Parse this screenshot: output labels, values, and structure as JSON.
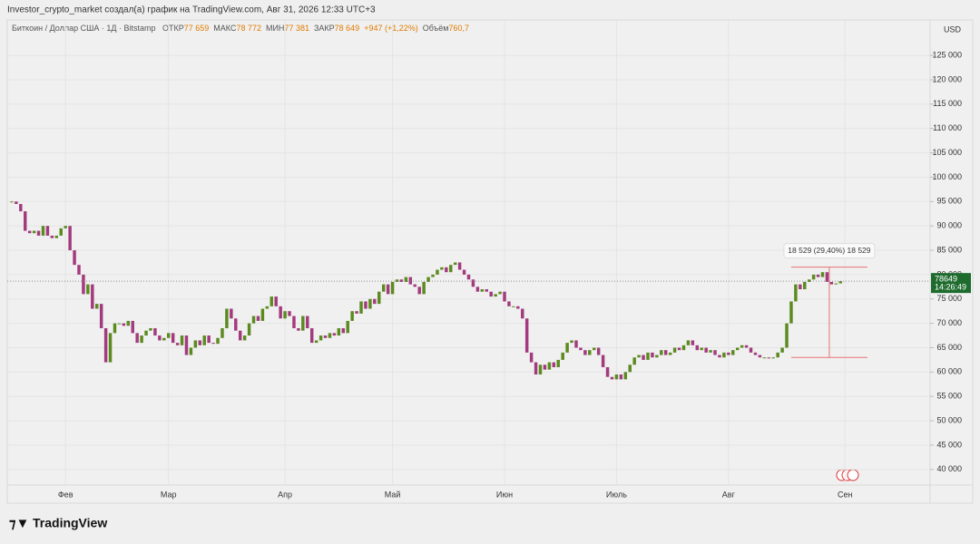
{
  "chart_data": {
    "type": "candlestick",
    "header": "Investor_crypto_market создал(а) график на TradingView.com, Авг 31, 2026 12:33 UTC+3",
    "symbol": "Биткоин / Доллар США · 1Д · Bitstamp",
    "ohlc": [
      {
        "label": "ОТКР",
        "text": "77 659"
      },
      {
        "label": "МАКС",
        "text": "78 772"
      },
      {
        "label": "МИН",
        "text": "77 381"
      },
      {
        "label": "ЗАКР",
        "text": "78 649"
      }
    ],
    "change": "+947 (+1,22%)",
    "volume": {
      "label": "Объём",
      "text": "760,7"
    },
    "currency": "USD",
    "brand": "TradingView",
    "up_color": "#5b8a1f",
    "down_color": "#a23a7e",
    "close": [
      95000,
      94500,
      93000,
      89000,
      88500,
      89000,
      88000,
      90000,
      88000,
      87500,
      88000,
      89500,
      90000,
      85000,
      82000,
      80000,
      76000,
      78000,
      73000,
      74000,
      69000,
      62000,
      68000,
      70000,
      70000,
      69500,
      70500,
      68000,
      66000,
      67500,
      68500,
      69000,
      67500,
      66500,
      67000,
      68000,
      66000,
      65500,
      67500,
      63500,
      65000,
      66500,
      65500,
      67500,
      66000,
      65800,
      67000,
      69000,
      73000,
      71000,
      68500,
      66500,
      67500,
      70000,
      71500,
      70500,
      73000,
      73500,
      75500,
      73500,
      71000,
      72500,
      71500,
      69000,
      68500,
      71500,
      69000,
      66000,
      66500,
      67500,
      67000,
      68000,
      67500,
      69000,
      68000,
      70500,
      72500,
      72000,
      74500,
      73000,
      75000,
      74000,
      76500,
      78000,
      76000,
      78500,
      79000,
      78500,
      79500,
      78000,
      77500,
      76000,
      78500,
      79500,
      80000,
      81000,
      81500,
      80500,
      82000,
      82500,
      81000,
      80000,
      79000,
      77500,
      76500,
      77000,
      76500,
      75500,
      76000,
      76500,
      74500,
      73500,
      73500,
      73000,
      71000,
      64000,
      62000,
      59500,
      61500,
      60500,
      62000,
      61000,
      62500,
      64000,
      66000,
      66500,
      65000,
      64500,
      63500,
      64500,
      65000,
      63500,
      61000,
      59000,
      58500,
      59500,
      58500,
      60000,
      61500,
      63000,
      63500,
      62500,
      64000,
      63000,
      63500,
      64500,
      63500,
      64000,
      65000,
      64500,
      65500,
      66500,
      65500,
      64500,
      65000,
      64000,
      64500,
      63500,
      63000,
      64000,
      63500,
      64500,
      65000,
      65500,
      65000,
      64000,
      63500,
      63000,
      63000,
      62800,
      63000,
      64000,
      65000,
      70000,
      74500,
      78000,
      77000,
      78500,
      79000,
      80000,
      79500,
      80500,
      78500,
      78000,
      78200,
      78649
    ],
    "xlim": [
      -1,
      205
    ],
    "xticks": [
      {
        "value": 12,
        "label": "Фев"
      },
      {
        "value": 35,
        "label": "Мар"
      },
      {
        "value": 61,
        "label": "Апр"
      },
      {
        "value": 85,
        "label": "Май"
      },
      {
        "value": 110,
        "label": "Июн"
      },
      {
        "value": 135,
        "label": "Июль"
      },
      {
        "value": 160,
        "label": "Авг"
      },
      {
        "value": 186,
        "label": "Сен"
      }
    ],
    "ylim": [
      36800,
      128000
    ],
    "yticks": [
      {
        "value": 40000,
        "label": "40 000"
      },
      {
        "value": 45000,
        "label": "45 000"
      },
      {
        "value": 50000,
        "label": "50 000"
      },
      {
        "value": 55000,
        "label": "55 000"
      },
      {
        "value": 60000,
        "label": "60 000"
      },
      {
        "value": 65000,
        "label": "65 000"
      },
      {
        "value": 70000,
        "label": "70 000"
      },
      {
        "value": 75000,
        "label": "75 000"
      },
      {
        "value": 80000,
        "label": "80 000"
      },
      {
        "value": 85000,
        "label": "85 000"
      },
      {
        "value": 90000,
        "label": "90 000"
      },
      {
        "value": 95000,
        "label": "95 000"
      },
      {
        "value": 100000,
        "label": "100 000"
      },
      {
        "value": 105000,
        "label": "105 000"
      },
      {
        "value": 110000,
        "label": "110 000"
      },
      {
        "value": 115000,
        "label": "115 000"
      },
      {
        "value": 120000,
        "label": "120 000"
      },
      {
        "value": 125000,
        "label": "125 000"
      }
    ],
    "grid": true,
    "last_price": {
      "value": 78649,
      "countdown": "14:26:49",
      "color": "#1e6b2e"
    },
    "measure": {
      "label": "18 529 (29,40%) 18 529",
      "from": 63000,
      "to": 81529,
      "start": 174,
      "end": 191,
      "color": "#e57373"
    }
  }
}
